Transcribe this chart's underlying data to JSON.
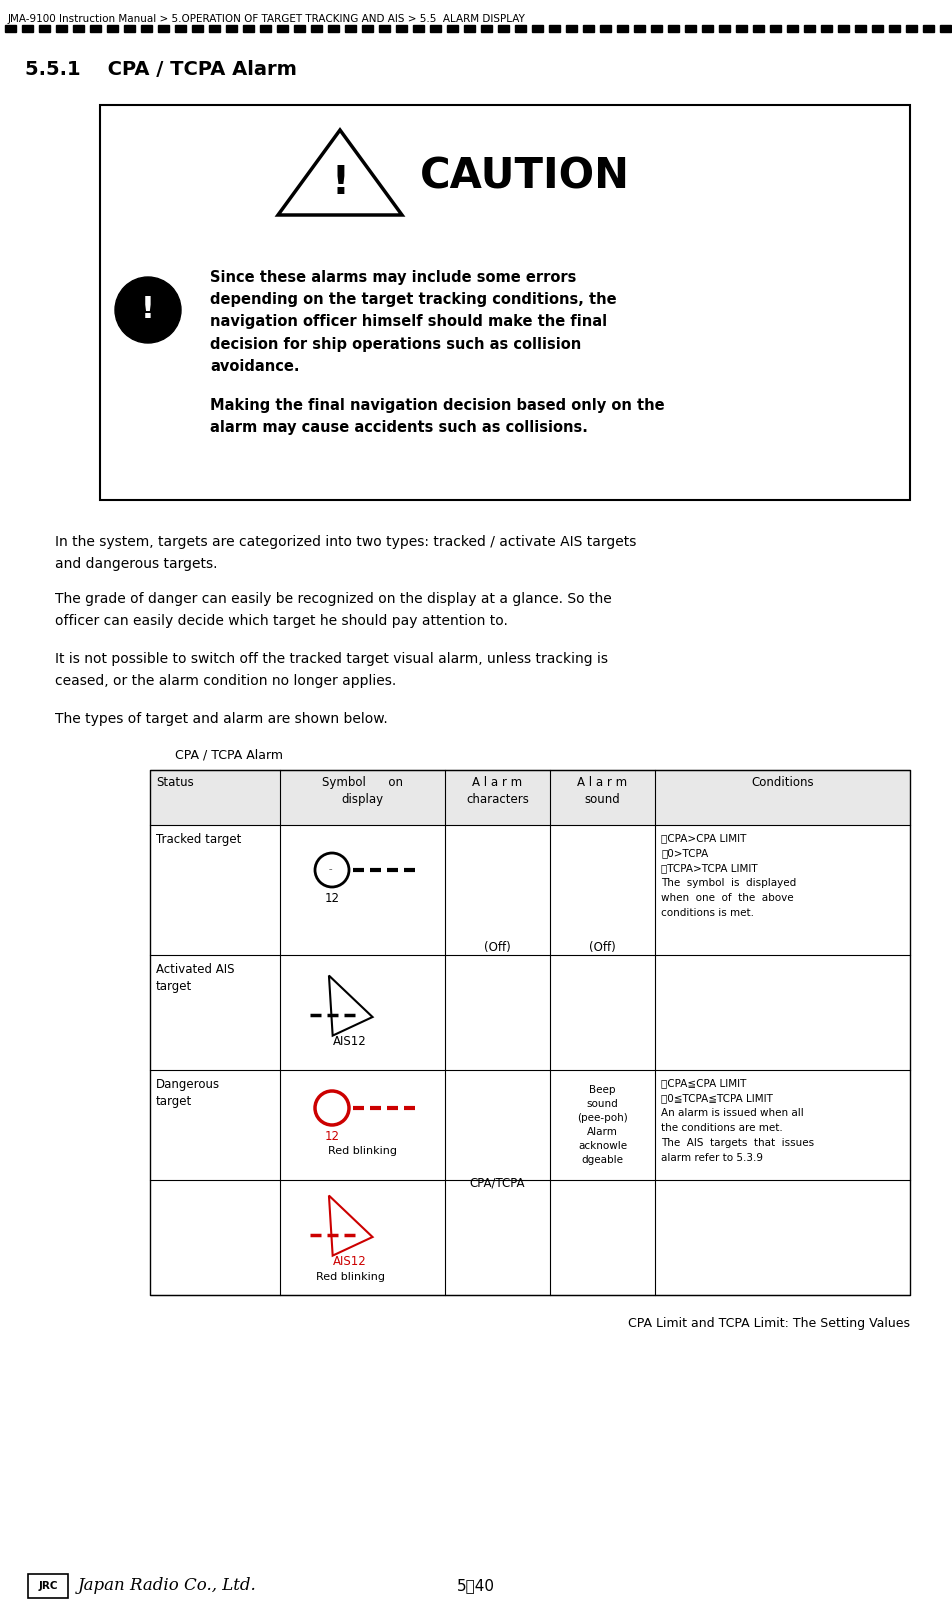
{
  "page_title": "JMA-9100 Instruction Manual > 5.OPERATION OF TARGET TRACKING AND AIS > 5.5  ALARM DISPLAY",
  "section_title": "5.5.1    CPA / TCPA Alarm",
  "caution_title": "CAUTION",
  "caution_text1": "Since these alarms may include some errors\ndepending on the target tracking conditions, the\nnavigation officer himself should make the final\ndecision for ship operations such as collision\navoidance.",
  "caution_text2": "Making the final navigation decision based only on the\nalarm may cause accidents such as collisions.",
  "para1": "In the system, targets are categorized into two types: tracked / activate AIS targets\nand dangerous targets.",
  "para2": "The grade of danger can easily be recognized on the display at a glance. So the\nofficer can easily decide which target he should pay attention to.",
  "para3": "It is not possible to switch off the tracked target visual alarm, unless tracking is\nceased, or the alarm condition no longer applies.",
  "para4": "The types of target and alarm are shown below.",
  "table_title": "CPA / TCPA Alarm",
  "col_headers": [
    "Status",
    "Symbol      on\ndisplay",
    "A l a r m\ncharacters",
    "A l a r m\nsound",
    "Conditions"
  ],
  "row1_status": "Tracked target",
  "row1_alarm_chars": "(Off)",
  "row1_alarm_sound": "(Off)",
  "row1_conditions_lines": [
    "・CPA>CPA LIMIT",
    "・0>TCPA",
    "・TCPA>TCPA LIMIT",
    "The  symbol  is  displayed",
    "when  one  of  the  above",
    "conditions is met."
  ],
  "row2_status": "Activated AIS\ntarget",
  "row3_status": "Dangerous\ntarget",
  "row3_alarm_chars": "CPA/TCPA",
  "row3_alarm_sound_lines": [
    "Beep",
    "sound",
    "(pee-poh)",
    "Alarm",
    "acknowle",
    "dgeable"
  ],
  "row3_conditions_lines": [
    "・CPA≦CPA LIMIT",
    "・0≦TCPA≦TCPA LIMIT",
    "An alarm is issued when all",
    "the conditions are met.",
    "The  AIS  targets  that  issues",
    "alarm refer to 5.3.9"
  ],
  "red_blinking": "Red blinking",
  "footer_note": "CPA Limit and TCPA Limit: The Setting Values",
  "footer_page": "5－40",
  "bg_color": "#ffffff",
  "red_color": "#cc0000"
}
